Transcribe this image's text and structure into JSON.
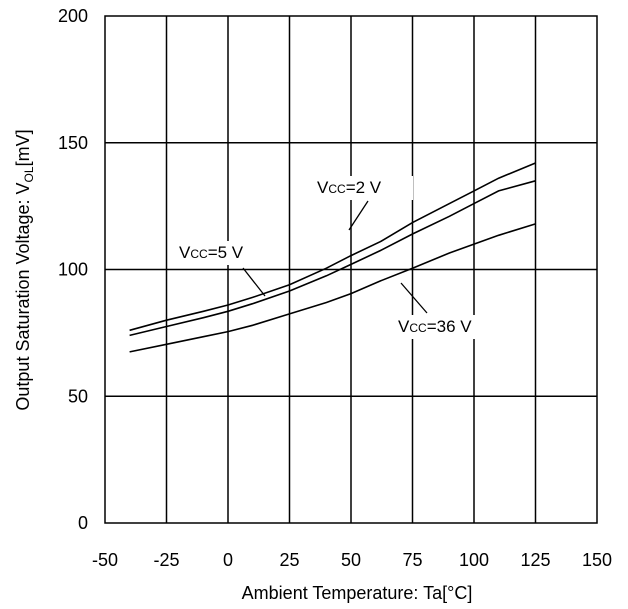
{
  "chart_data": {
    "type": "line",
    "title": "",
    "xlabel": "Ambient Temperature: Ta[°C]",
    "ylabel": {
      "main": "Output Saturation Voltage: V",
      "sub": "OL",
      "unit": "[mV]"
    },
    "xlim": [
      -50,
      150
    ],
    "ylim": [
      0,
      200
    ],
    "x_ticks": [
      "-50",
      "-25",
      "0",
      "25",
      "50",
      "75",
      "100",
      "125",
      "150"
    ],
    "y_ticks": [
      "0",
      "50",
      "100",
      "150",
      "200"
    ],
    "grid": true,
    "x": [
      -40,
      -25,
      -10,
      0,
      10,
      25,
      40,
      50,
      62,
      75,
      90,
      100,
      110,
      125
    ],
    "series": [
      {
        "name": "VCC=2 V",
        "label": {
          "pre": "V",
          "sub": "CC",
          "post": "=2 V"
        },
        "values": [
          76,
          80,
          83.5,
          86,
          89,
          94,
          100.5,
          105.5,
          111,
          118.5,
          126,
          131,
          136,
          142
        ]
      },
      {
        "name": "VCC=5 V",
        "label": {
          "pre": "V",
          "sub": "CC",
          "post": "=5 V"
        },
        "values": [
          74,
          77.5,
          81,
          83.5,
          86.5,
          91.5,
          97.5,
          102,
          107.5,
          114,
          121,
          126,
          131,
          135
        ]
      },
      {
        "name": "VCC=36 V",
        "label": {
          "pre": "V",
          "sub": "CC",
          "post": "=36 V"
        },
        "values": [
          67.5,
          70.5,
          73.5,
          75.5,
          78,
          82.5,
          87,
          90.5,
          95.5,
          100.5,
          106.5,
          110,
          113.5,
          118
        ]
      }
    ]
  }
}
